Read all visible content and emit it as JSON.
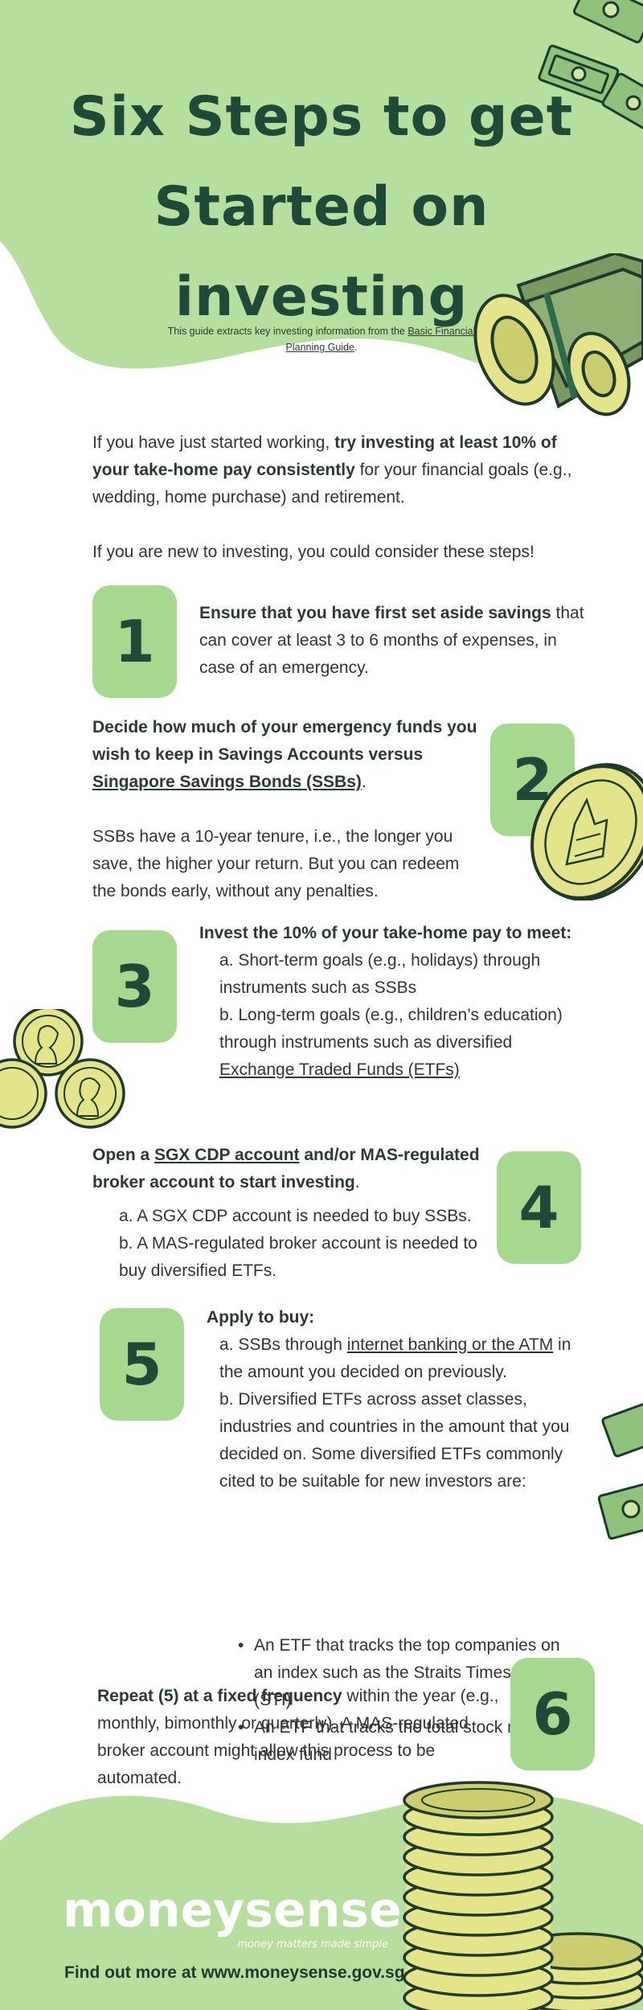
{
  "header": {
    "title_line1": "Six Steps to get",
    "title_line2": "Started on",
    "title_line3": "investing",
    "subtitle_prefix": "This guide extracts key investing information from the",
    "subtitle_link": "Basic Financial Planning Guide",
    "subtitle_suffix": "."
  },
  "intro": {
    "p1_part1": "If you have just started working, ",
    "p1_bold": "try investing at least 10% of your take-home pay consistently",
    "p1_part2": " for your financial goals (e.g., wedding, home purchase) and retirement.",
    "p2": "If you are new to investing, you could consider these steps!"
  },
  "steps": {
    "s1": {
      "number": "1",
      "bold": "Ensure that you have first set aside savings",
      "text": " that can cover at least 3 to 6 months of expenses, in case of an emergency."
    },
    "s2": {
      "number": "2",
      "bold": "Decide how much of your emergency funds you wish to keep in Savings Accounts versus",
      "link": "Singapore Savings Bonds (SSBs)",
      "suffix": ".",
      "text": "SSBs have a 10-year tenure, i.e., the longer you save, the higher your return. But you can redeem the bonds early, without any penalties."
    },
    "s3": {
      "number": "3",
      "heading": "Invest the 10% of your take-home pay to meet:",
      "a": "a. Short-term goals (e.g., holidays) through instruments such as SSBs",
      "b_prefix": "b. Long-term goals (e.g., children’s education) through instruments such as diversified",
      "b_link": "Exchange Traded Funds (ETFs)"
    },
    "s4": {
      "number": "4",
      "h_prefix": "Open a ",
      "h_link": "SGX CDP account",
      "h_suffix": " and/or MAS-regulated broker account to start investing",
      "h_end": ".",
      "a": "a. A SGX CDP account is needed to buy SSBs.",
      "b": "b. A MAS-regulated broker account is needed to buy diversified ETFs."
    },
    "s5": {
      "number": "5",
      "heading": "Apply to buy:",
      "a_prefix": "a. SSBs through ",
      "a_link": "internet banking or the ATM",
      "a_suffix": " in the amount you decided on previously.",
      "b": "b. Diversified ETFs across asset classes, industries and countries in the amount that you decided on. Some diversified ETFs commonly cited to be suitable for new investors are:",
      "bullets": [
        "An ETF that tracks the top companies on an index such as the Straits Times Index (STI)",
        "An ETF that tracks the total stock market index fund"
      ]
    },
    "s6": {
      "number": "6",
      "bold": "Repeat (5) at a fixed frequency",
      "text": " within the year (e.g., monthly, bimonthly or quarterly). A MAS-regulated broker account might allow this process to be automated."
    }
  },
  "footer": {
    "logo": "moneysense",
    "tagline": "money matters made simple",
    "cta": "Find out more at www.moneysense.gov.sg"
  },
  "colors": {
    "light_green": "#b6df9e",
    "box_green": "#a5d98d",
    "dark_green": "#1f4a37",
    "coin_yellow": "#e4e58a"
  },
  "icons": [
    "money-bills-icon",
    "money-roll-icon",
    "gold-coin-icon",
    "coin-stack-icon"
  ]
}
